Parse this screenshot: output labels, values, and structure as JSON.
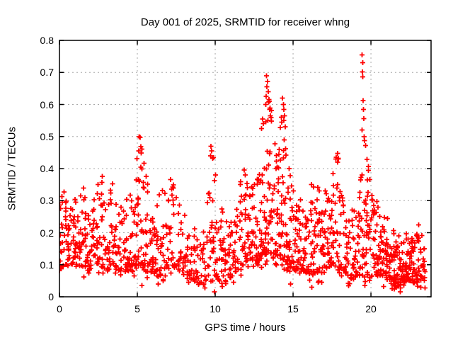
{
  "chart": {
    "title": "Day 001 of 2025, SRMTID for receiver whng",
    "xlabel": "GPS time / hours",
    "ylabel": "SRMTID / TECUs"
  },
  "chart_data": {
    "type": "scatter",
    "title": "Day 001 of 2025, SRMTID for receiver whng",
    "xlabel": "GPS time / hours",
    "ylabel": "SRMTID / TECUs",
    "xlim": [
      0,
      23.86
    ],
    "ylim": [
      0,
      0.8
    ],
    "xticks": {
      "values": [
        0,
        5,
        10,
        15,
        20
      ],
      "labels": [
        "0",
        "5",
        "10",
        "15",
        "20"
      ]
    },
    "yticks": {
      "values": [
        0,
        0.1,
        0.2,
        0.3,
        0.4,
        0.5,
        0.6,
        0.7,
        0.8
      ],
      "labels": [
        "0",
        "0.1",
        "0.2",
        "0.3",
        "0.4",
        "0.5",
        "0.6",
        "0.7",
        "0.8"
      ]
    },
    "grid": true,
    "grid_style": "dotted-gray",
    "legend": false,
    "marker": "plus",
    "marker_color": "#ff0000",
    "grid_color": "#a8a8a8",
    "border_color": "#000000",
    "series_name": "SRMTID",
    "t_range": [
      0,
      23.45
    ],
    "bin_hours": 0.25,
    "seed": 7,
    "band_envelope": [
      [
        0.0,
        0.08,
        0.32
      ],
      [
        0.3,
        0.1,
        0.33
      ],
      [
        0.6,
        0.1,
        0.26
      ],
      [
        0.9,
        0.1,
        0.31
      ],
      [
        1.2,
        0.1,
        0.28
      ],
      [
        1.6,
        0.09,
        0.33
      ],
      [
        1.9,
        0.08,
        0.23
      ],
      [
        2.2,
        0.1,
        0.3
      ],
      [
        2.5,
        0.1,
        0.35
      ],
      [
        2.8,
        0.09,
        0.36
      ],
      [
        3.1,
        0.08,
        0.27
      ],
      [
        3.4,
        0.1,
        0.36
      ],
      [
        3.7,
        0.08,
        0.28
      ],
      [
        4.0,
        0.06,
        0.26
      ],
      [
        4.3,
        0.08,
        0.3
      ],
      [
        4.7,
        0.09,
        0.34
      ],
      [
        5.0,
        0.1,
        0.43
      ],
      [
        5.2,
        0.1,
        0.47
      ],
      [
        5.5,
        0.08,
        0.38
      ],
      [
        5.8,
        0.07,
        0.3
      ],
      [
        6.1,
        0.07,
        0.28
      ],
      [
        6.4,
        0.06,
        0.3
      ],
      [
        6.8,
        0.09,
        0.33
      ],
      [
        7.1,
        0.1,
        0.37
      ],
      [
        7.4,
        0.09,
        0.33
      ],
      [
        7.7,
        0.08,
        0.28
      ],
      [
        8.0,
        0.06,
        0.25
      ],
      [
        8.4,
        0.05,
        0.22
      ],
      [
        8.8,
        0.04,
        0.2
      ],
      [
        9.2,
        0.03,
        0.2
      ],
      [
        9.5,
        0.06,
        0.28
      ],
      [
        9.8,
        0.08,
        0.45
      ],
      [
        10.1,
        0.06,
        0.33
      ],
      [
        10.4,
        0.04,
        0.26
      ],
      [
        10.8,
        0.05,
        0.25
      ],
      [
        11.2,
        0.07,
        0.28
      ],
      [
        11.6,
        0.09,
        0.35
      ],
      [
        12.0,
        0.11,
        0.4
      ],
      [
        12.3,
        0.12,
        0.38
      ],
      [
        12.6,
        0.1,
        0.34
      ],
      [
        12.9,
        0.11,
        0.38
      ],
      [
        13.2,
        0.13,
        0.5
      ],
      [
        13.45,
        0.14,
        0.65
      ],
      [
        13.7,
        0.12,
        0.52
      ],
      [
        14.0,
        0.12,
        0.46
      ],
      [
        14.3,
        0.12,
        0.58
      ],
      [
        14.6,
        0.1,
        0.45
      ],
      [
        14.9,
        0.09,
        0.34
      ],
      [
        15.2,
        0.08,
        0.31
      ],
      [
        15.6,
        0.08,
        0.29
      ],
      [
        16.0,
        0.07,
        0.31
      ],
      [
        16.4,
        0.08,
        0.36
      ],
      [
        16.8,
        0.07,
        0.31
      ],
      [
        17.2,
        0.09,
        0.33
      ],
      [
        17.6,
        0.1,
        0.4
      ],
      [
        17.9,
        0.1,
        0.44
      ],
      [
        18.2,
        0.08,
        0.33
      ],
      [
        18.6,
        0.06,
        0.27
      ],
      [
        19.0,
        0.05,
        0.25
      ],
      [
        19.35,
        0.07,
        0.45
      ],
      [
        19.55,
        0.06,
        0.5
      ],
      [
        19.8,
        0.06,
        0.4
      ],
      [
        20.1,
        0.06,
        0.3
      ],
      [
        20.4,
        0.07,
        0.28
      ],
      [
        20.8,
        0.06,
        0.25
      ],
      [
        21.2,
        0.05,
        0.21
      ],
      [
        21.6,
        0.03,
        0.18
      ],
      [
        22.0,
        0.04,
        0.17
      ],
      [
        22.4,
        0.05,
        0.19
      ],
      [
        22.8,
        0.04,
        0.17
      ],
      [
        23.1,
        0.05,
        0.21
      ],
      [
        23.45,
        0.04,
        0.15
      ]
    ],
    "density_per_bin": [
      [
        0,
        16
      ],
      [
        2,
        15
      ],
      [
        4,
        14
      ],
      [
        5.2,
        18
      ],
      [
        6,
        14
      ],
      [
        8,
        12
      ],
      [
        9,
        10
      ],
      [
        10,
        14
      ],
      [
        11,
        13
      ],
      [
        12,
        16
      ],
      [
        13.5,
        22
      ],
      [
        14.5,
        20
      ],
      [
        15.5,
        16
      ],
      [
        16.5,
        16
      ],
      [
        17.5,
        18
      ],
      [
        18.5,
        13
      ],
      [
        19.5,
        20
      ],
      [
        20.5,
        18
      ],
      [
        21.5,
        22
      ],
      [
        22.5,
        22
      ],
      [
        23.4,
        14
      ]
    ],
    "outliers": [
      [
        5.12,
        0.5
      ],
      [
        5.17,
        0.497
      ],
      [
        5.22,
        0.468
      ],
      [
        5.1,
        0.455
      ],
      [
        9.72,
        0.47
      ],
      [
        9.78,
        0.455
      ],
      [
        9.7,
        0.44
      ],
      [
        9.84,
        0.432
      ],
      [
        13.3,
        0.69
      ],
      [
        13.36,
        0.672
      ],
      [
        13.32,
        0.655
      ],
      [
        13.4,
        0.64
      ],
      [
        13.28,
        0.625
      ],
      [
        13.45,
        0.615
      ],
      [
        13.25,
        0.6
      ],
      [
        13.5,
        0.585
      ],
      [
        13.55,
        0.565
      ],
      [
        13.05,
        0.555
      ],
      [
        13.1,
        0.54
      ],
      [
        12.98,
        0.525
      ],
      [
        14.32,
        0.62
      ],
      [
        14.38,
        0.6
      ],
      [
        14.4,
        0.585
      ],
      [
        14.45,
        0.565
      ],
      [
        14.28,
        0.545
      ],
      [
        14.5,
        0.53
      ],
      [
        19.44,
        0.755
      ],
      [
        19.47,
        0.73
      ],
      [
        19.45,
        0.702
      ],
      [
        19.48,
        0.686
      ],
      [
        19.5,
        0.612
      ],
      [
        19.52,
        0.585
      ],
      [
        19.54,
        0.556
      ],
      [
        19.42,
        0.52
      ],
      [
        19.56,
        0.5
      ],
      [
        17.78,
        0.435
      ],
      [
        17.85,
        0.42
      ],
      [
        17.9,
        0.43
      ],
      [
        9.95,
        0.015
      ],
      [
        21.35,
        0.025
      ],
      [
        19.62,
        0.035
      ],
      [
        9.35,
        0.028
      ],
      [
        6.35,
        0.04
      ],
      [
        10.45,
        0.032
      ],
      [
        18.55,
        0.042
      ],
      [
        21.9,
        0.028
      ],
      [
        23.2,
        0.03
      ],
      [
        5.3,
        0.035
      ],
      [
        14.85,
        0.04
      ],
      [
        16.2,
        0.03
      ],
      [
        16.6,
        0.045
      ],
      [
        8.3,
        0.045
      ]
    ]
  }
}
